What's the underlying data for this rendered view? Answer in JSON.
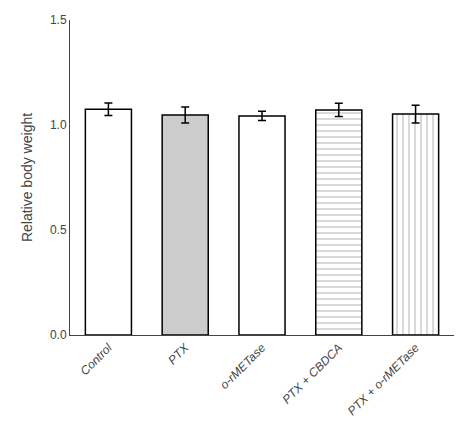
{
  "chart_data": {
    "type": "bar",
    "categories": [
      "Control",
      "PTX",
      "o-rMETase",
      "PTX + CBDCA",
      "PTX + o-rMETase"
    ],
    "values": [
      1.075,
      1.048,
      1.043,
      1.072,
      1.052
    ],
    "errors": [
      0.03,
      0.038,
      0.022,
      0.032,
      0.042
    ],
    "colors": [
      "#ffffff",
      "#cccccc",
      "#ffffff",
      "#cccccc",
      "#cccccc"
    ],
    "ylabel": "Relative body weight",
    "ylim": [
      0.0,
      1.5
    ],
    "yticks": [
      {
        "value": 0.0,
        "label": "0.0"
      },
      0.5,
      {
        "value": 1.0,
        "label": "1.0"
      },
      1.5
    ],
    "grid": false
  }
}
